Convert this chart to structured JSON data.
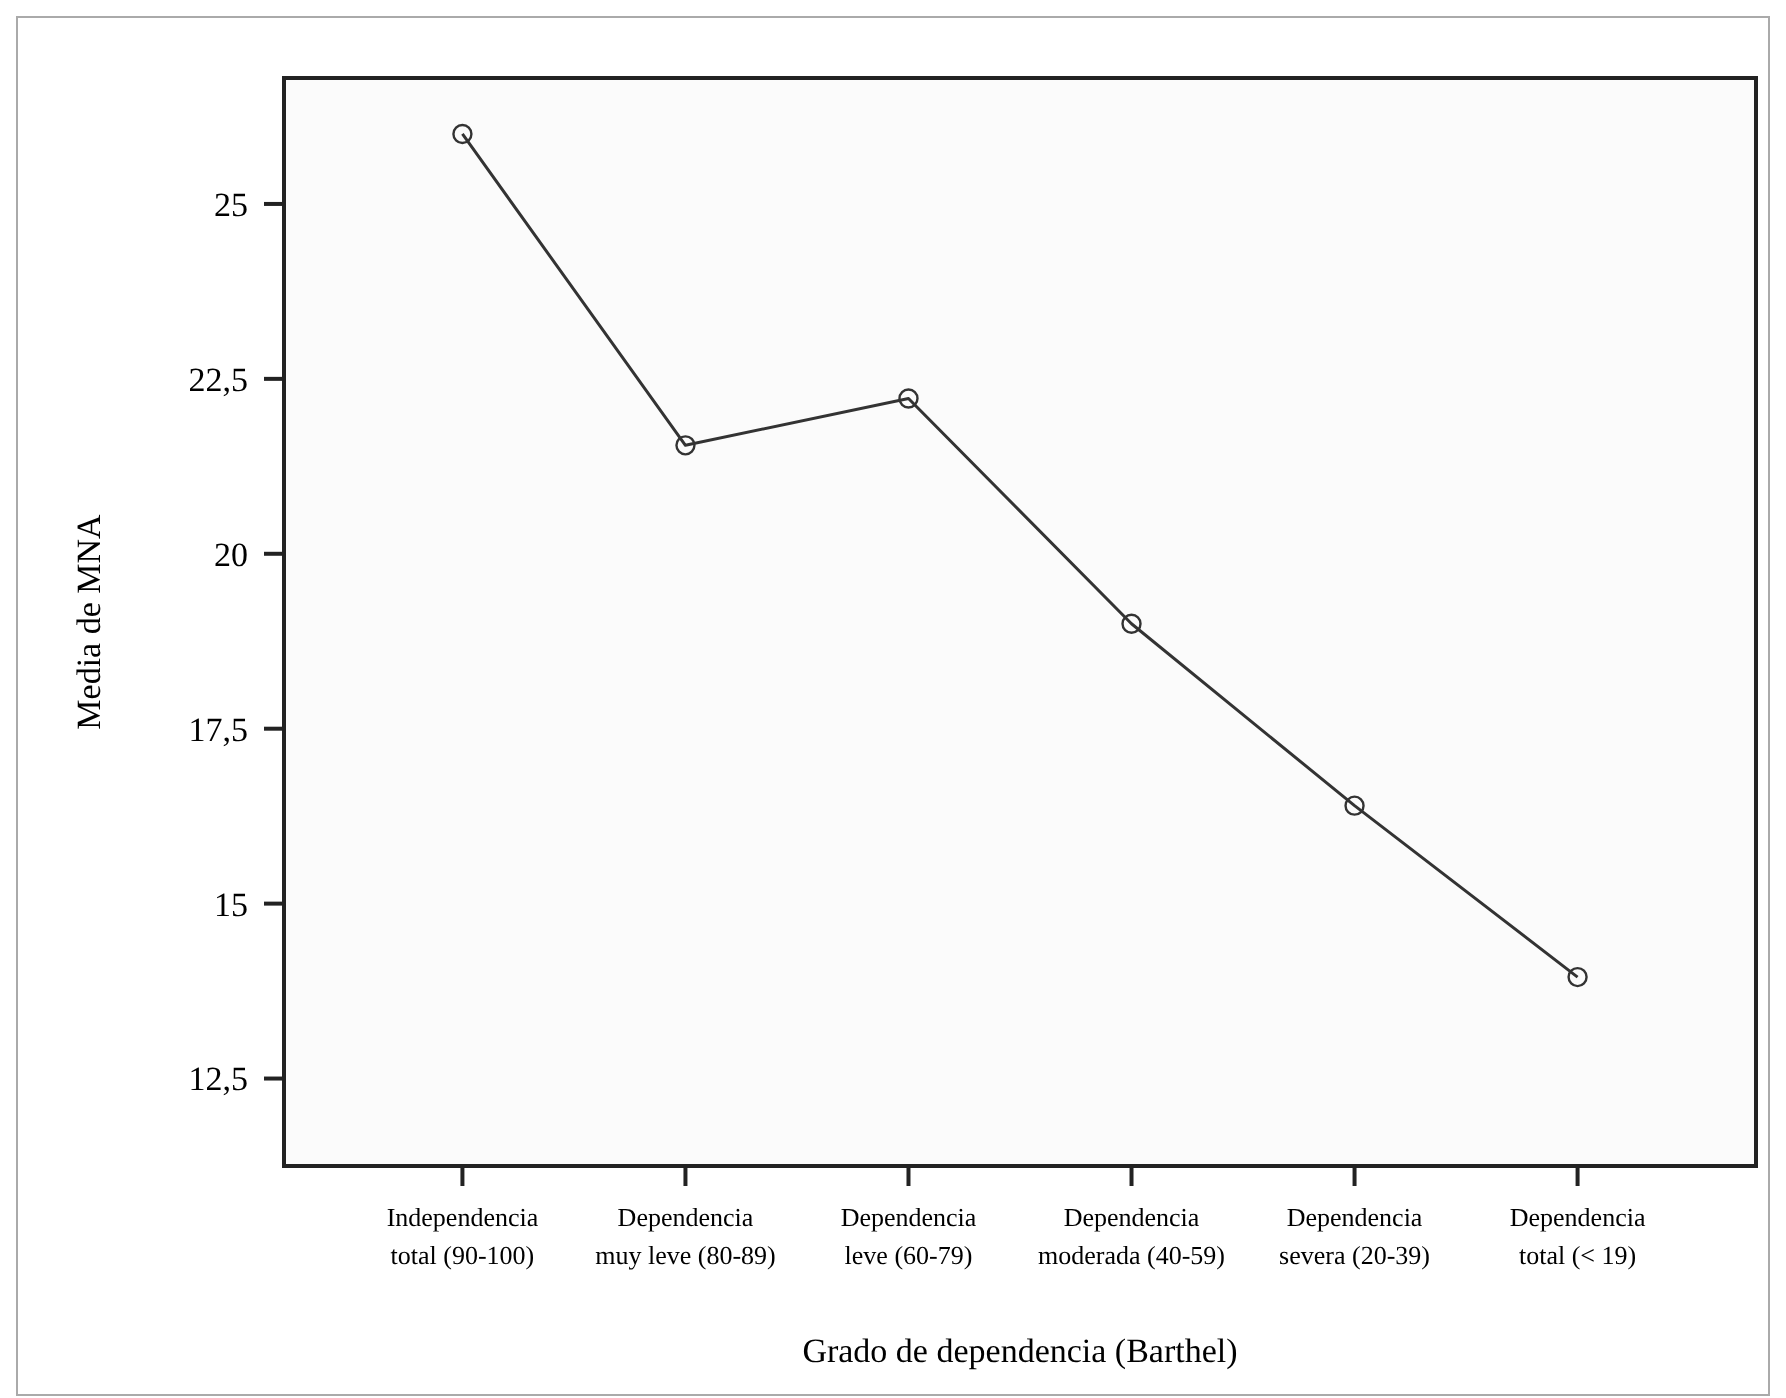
{
  "chart_data": {
    "type": "line",
    "xlabel": "Grado de dependencia (Barthel)",
    "ylabel": "Media de MNA",
    "categories": [
      "Independencia total (90-100)",
      "Dependencia muy leve (80-89)",
      "Dependencia leve (60-79)",
      "Dependencia moderada (40-59)",
      "Dependencia severa (20-39)",
      "Dependencia total (< 19)"
    ],
    "series": [
      {
        "color": "#333333",
        "values": [
          26.0,
          21.55,
          22.22,
          19.0,
          16.4,
          13.95
        ]
      }
    ],
    "ylim": [
      11.25,
      26.8
    ],
    "yticks": [
      {
        "value": 12.5,
        "label": "12,5"
      },
      15,
      {
        "value": 17.5,
        "label": "17,5"
      },
      20,
      {
        "value": 22.5,
        "label": "22,5"
      },
      25
    ],
    "marker": "circle",
    "line_style": "solid"
  }
}
